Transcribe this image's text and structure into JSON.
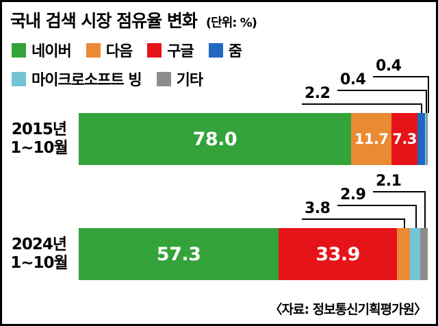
{
  "header": {
    "title": "국내 검색 시장 점유율 변화",
    "unit": "(단위: %)"
  },
  "footer": {
    "source": "〈자료: 정보통신기획평가원〉"
  },
  "legend": {
    "rows": [
      [
        "naver",
        "daum",
        "google",
        "zum"
      ],
      [
        "bing",
        "etc"
      ]
    ]
  },
  "chart_data": {
    "type": "bar",
    "stacked": true,
    "orientation": "horizontal",
    "title": "국내 검색 시장 점유율 변화",
    "value_unit": "%",
    "x_range": [
      0,
      100
    ],
    "grid": false,
    "legend_position": "top-left",
    "series": [
      {
        "id": "naver",
        "name": "네이버",
        "color": "#34a33a"
      },
      {
        "id": "daum",
        "name": "다음",
        "color": "#ea8a33"
      },
      {
        "id": "google",
        "name": "구글",
        "color": "#e61319"
      },
      {
        "id": "zum",
        "name": "줌",
        "color": "#2268c0"
      },
      {
        "id": "bing",
        "name": "마이크로소프트 빙",
        "color": "#74c4d7"
      },
      {
        "id": "etc",
        "name": "기타",
        "color": "#8c8c8c"
      }
    ],
    "bars": [
      {
        "id": "2015",
        "label_lines": [
          "2015년",
          "1~10월"
        ],
        "segments": [
          {
            "series": "naver",
            "value": 78.0,
            "label": "78.0",
            "label_style": "inside"
          },
          {
            "series": "daum",
            "value": 11.7,
            "label": "11.7",
            "label_style": "inside"
          },
          {
            "series": "google",
            "value": 7.3,
            "label": "7.3",
            "label_style": "inside"
          },
          {
            "series": "zum",
            "value": 2.2,
            "label": "2.2",
            "label_style": "callout"
          },
          {
            "series": "bing",
            "value": 0.4,
            "label": "0.4",
            "label_style": "callout"
          },
          {
            "series": "etc",
            "value": 0.4,
            "label": "0.4",
            "label_style": "callout"
          }
        ]
      },
      {
        "id": "2024",
        "label_lines": [
          "2024년",
          "1~10월"
        ],
        "segments": [
          {
            "series": "naver",
            "value": 57.3,
            "label": "57.3",
            "label_style": "inside"
          },
          {
            "series": "google",
            "value": 33.9,
            "label": "33.9",
            "label_style": "inside"
          },
          {
            "series": "daum",
            "value": 3.8,
            "label": "3.8",
            "label_style": "callout"
          },
          {
            "series": "bing",
            "value": 2.9,
            "label": "2.9",
            "label_style": "callout"
          },
          {
            "series": "etc",
            "value": 2.1,
            "label": "2.1",
            "label_style": "callout"
          }
        ]
      }
    ]
  }
}
